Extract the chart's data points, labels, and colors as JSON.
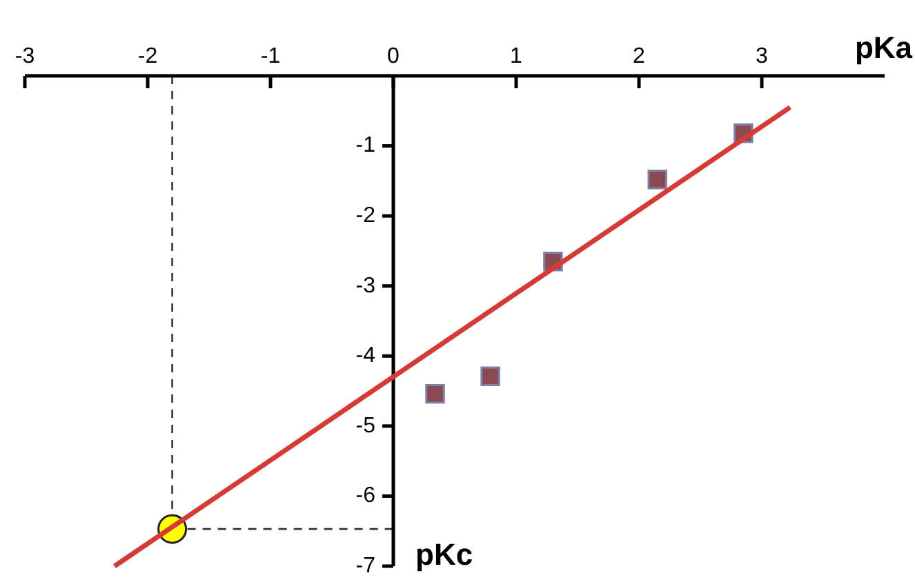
{
  "chart_data": {
    "type": "scatter",
    "xlabel": "pKa",
    "ylabel": "pKc",
    "xlim": [
      -3,
      4
    ],
    "ylim": [
      -7,
      0
    ],
    "xticks": [
      -3,
      -2,
      -1,
      0,
      1,
      2,
      3
    ],
    "yticks": [
      -1,
      -2,
      -3,
      -4,
      -5,
      -6,
      -7
    ],
    "legend": false,
    "series": [
      {
        "type": "line",
        "color": "#d63a35",
        "x": [
          -2.27,
          3.23
        ],
        "values": [
          -7.0,
          -0.45
        ],
        "marker": "none",
        "line_style": "solid"
      },
      {
        "color": "#8b4a52",
        "x": [
          0.34,
          0.79,
          1.3,
          2.15,
          2.85
        ],
        "values": [
          -4.54,
          -4.29,
          -2.65,
          -1.48,
          -0.82
        ],
        "marker": "square"
      },
      {
        "color": "#ffff00",
        "x": [
          -1.8
        ],
        "values": [
          -6.47
        ],
        "marker": "circle"
      }
    ],
    "ref_lines": [
      {
        "axis": "x",
        "value": -1.8,
        "color": "#333333",
        "line_style": "dashed"
      },
      {
        "axis": "y",
        "value": -6.47,
        "color": "#333333",
        "line_style": "dashed"
      }
    ]
  }
}
